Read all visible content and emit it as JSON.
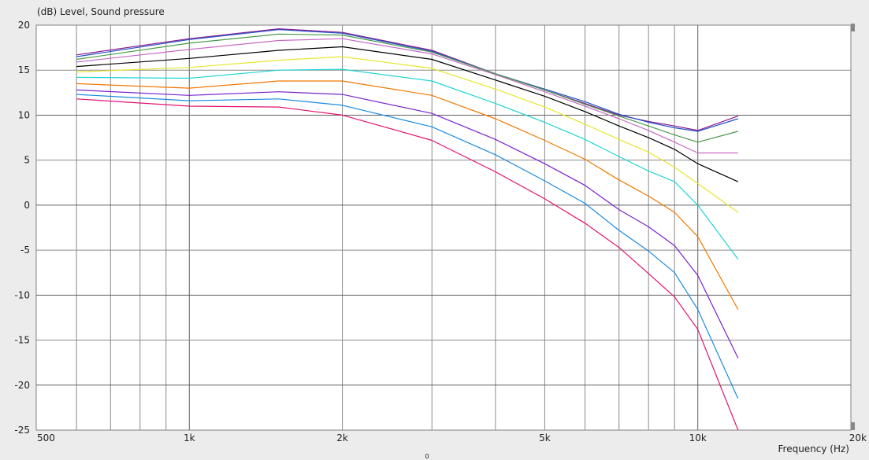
{
  "chart_data": {
    "type": "line",
    "title": "(dB)  Level, Sound pressure",
    "xlabel": "Frequency  (Hz)",
    "ylabel": "(dB)  Level, Sound pressure",
    "x_scale": "log",
    "xlim": [
      500,
      20000
    ],
    "ylim": [
      -25,
      20
    ],
    "grid": true,
    "x_tick_labels": [
      {
        "value": 500,
        "label": "500"
      },
      {
        "value": 1000,
        "label": "1k"
      },
      {
        "value": 2000,
        "label": "2k"
      },
      {
        "value": 5000,
        "label": "5k"
      },
      {
        "value": 10000,
        "label": "10k"
      },
      {
        "value": 20000,
        "label": "20k"
      }
    ],
    "y_ticks": [
      20,
      15,
      10,
      5,
      0,
      -5,
      -10,
      -15,
      -20,
      -25
    ],
    "y_tick_labels": [
      "20",
      "15",
      "10",
      "5",
      "0",
      "-5",
      "-10",
      "-15",
      "-20",
      "-25"
    ],
    "x": [
      600,
      1000,
      1500,
      2000,
      3000,
      4000,
      5000,
      6000,
      7000,
      8000,
      9000,
      10000,
      12000
    ],
    "series": [
      {
        "color": "#8b1a8b",
        "values": [
          16.7,
          18.5,
          19.6,
          19.2,
          17.2,
          14.6,
          12.8,
          11.3,
          10.0,
          9.3,
          8.8,
          8.3,
          9.9
        ]
      },
      {
        "color": "#2255cc",
        "values": [
          16.5,
          18.4,
          19.5,
          19.1,
          17.1,
          14.6,
          12.9,
          11.5,
          10.1,
          9.2,
          8.6,
          8.2,
          9.6
        ]
      },
      {
        "color": "#4a9a4a",
        "values": [
          16.2,
          18.0,
          19.0,
          18.9,
          17.0,
          14.6,
          12.8,
          11.2,
          9.9,
          8.8,
          7.8,
          7.0,
          8.2
        ]
      },
      {
        "color": "#c46ac4",
        "values": [
          15.9,
          17.3,
          18.3,
          18.5,
          16.8,
          14.5,
          12.6,
          11.0,
          9.6,
          8.3,
          7.0,
          5.8,
          5.8
        ]
      },
      {
        "color": "#000000",
        "values": [
          15.4,
          16.3,
          17.2,
          17.6,
          16.2,
          13.9,
          12.1,
          10.4,
          8.8,
          7.5,
          6.2,
          4.6,
          2.6
        ]
      },
      {
        "color": "#e6e62e",
        "values": [
          14.8,
          15.3,
          16.1,
          16.5,
          15.2,
          12.9,
          10.9,
          9.0,
          7.3,
          5.9,
          4.2,
          2.4,
          -0.8
        ]
      },
      {
        "color": "#22d4d4",
        "values": [
          14.2,
          14.1,
          15.0,
          15.1,
          13.8,
          11.3,
          9.2,
          7.3,
          5.4,
          3.8,
          2.6,
          0.0,
          -6.0
        ]
      },
      {
        "color": "#f07800",
        "values": [
          13.5,
          13.0,
          13.8,
          13.8,
          12.2,
          9.6,
          7.2,
          5.1,
          2.8,
          1.0,
          -0.8,
          -3.5,
          -11.6
        ]
      },
      {
        "color": "#7a22cc",
        "values": [
          12.8,
          12.2,
          12.6,
          12.3,
          10.2,
          7.3,
          4.6,
          2.2,
          -0.5,
          -2.4,
          -4.5,
          -7.8,
          -17.0
        ]
      },
      {
        "color": "#1a8ae0",
        "values": [
          12.3,
          11.6,
          11.8,
          11.1,
          8.7,
          5.6,
          2.7,
          0.2,
          -2.8,
          -5.1,
          -7.5,
          -11.6,
          -21.5
        ]
      },
      {
        "color": "#e0146e",
        "values": [
          11.8,
          11.0,
          10.9,
          10.0,
          7.2,
          3.7,
          0.7,
          -2.0,
          -4.7,
          -7.6,
          -10.2,
          -13.8,
          -25.0
        ]
      }
    ]
  },
  "extra_label": "0"
}
